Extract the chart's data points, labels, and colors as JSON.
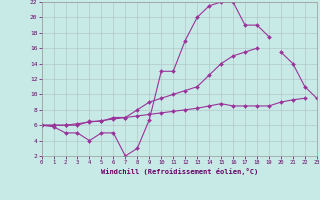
{
  "xlabel": "Windchill (Refroidissement éolien,°C)",
  "background_color": "#c8eae6",
  "grid_color": "#b0c8c8",
  "line_color": "#993399",
  "xmin": 0,
  "xmax": 23,
  "ymin": 2,
  "ymax": 22,
  "yticks": [
    2,
    4,
    6,
    8,
    10,
    12,
    14,
    16,
    18,
    20,
    22
  ],
  "xticks": [
    0,
    1,
    2,
    3,
    4,
    5,
    6,
    7,
    8,
    9,
    10,
    11,
    12,
    13,
    14,
    15,
    16,
    17,
    18,
    19,
    20,
    21,
    22,
    23
  ],
  "series": [
    {
      "x": [
        0,
        1,
        2,
        3,
        4,
        5,
        6,
        7,
        8,
        9,
        10,
        11,
        12,
        13,
        14,
        15,
        16,
        17,
        18,
        19
      ],
      "y": [
        6,
        5.8,
        5,
        5,
        4,
        5,
        5,
        2,
        3,
        6.7,
        13,
        13,
        17,
        20,
        21.5,
        22,
        22,
        19,
        19,
        17.5
      ]
    },
    {
      "x": [
        0,
        1,
        2,
        3,
        4,
        5,
        6,
        7,
        8,
        9,
        10,
        11,
        12,
        13,
        14,
        15,
        16,
        17,
        18
      ],
      "y": [
        6,
        6,
        6,
        6,
        6.5,
        6.5,
        7,
        7,
        8,
        9,
        9.5,
        10,
        10.5,
        11,
        12.5,
        14,
        15,
        15.5,
        16
      ]
    },
    {
      "x": [
        0,
        1,
        2,
        3,
        4,
        5,
        6,
        7,
        8,
        9,
        10,
        11,
        12,
        13,
        14,
        15,
        16,
        17,
        18,
        19,
        20,
        21,
        22
      ],
      "y": [
        6,
        6,
        6,
        6.2,
        6.4,
        6.6,
        6.8,
        7.0,
        7.2,
        7.4,
        7.6,
        7.8,
        8.0,
        8.2,
        8.5,
        8.8,
        8.5,
        8.5,
        8.5,
        8.5,
        9.0,
        9.3,
        9.5
      ]
    },
    {
      "x": [
        20,
        21,
        22,
        23
      ],
      "y": [
        15.5,
        14,
        11,
        9.5
      ]
    }
  ]
}
